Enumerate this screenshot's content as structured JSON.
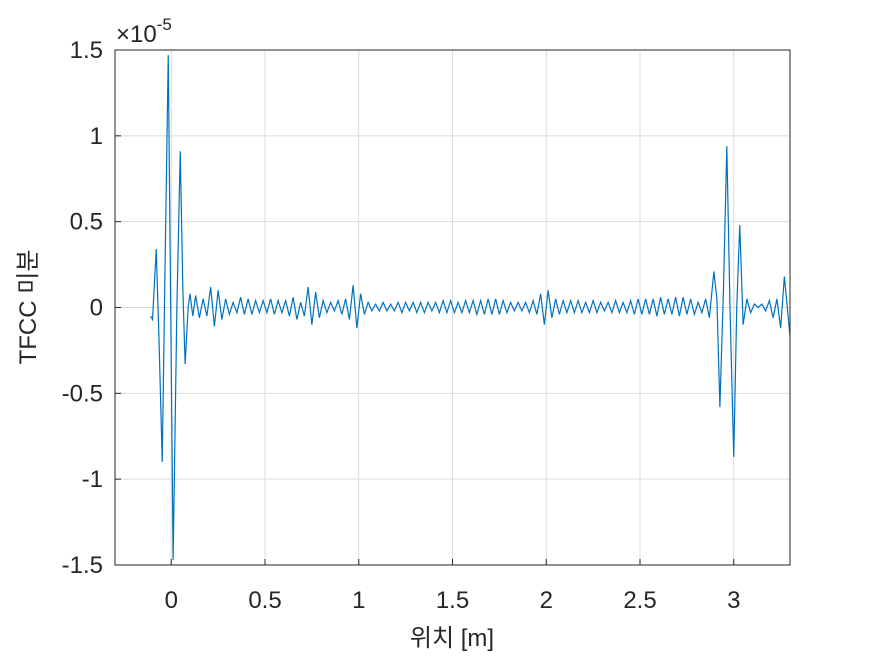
{
  "chart_data": {
    "type": "line",
    "xlabel": "위치 [m]",
    "ylabel": "TFCC 미분",
    "y_exponent_base": "×10",
    "y_exponent": "-5",
    "xlim": [
      -0.3,
      3.3
    ],
    "ylim": [
      -1.5,
      1.5
    ],
    "xticks": [
      0,
      0.5,
      1,
      1.5,
      2,
      2.5,
      3
    ],
    "yticks": [
      -1.5,
      -1,
      -0.5,
      0,
      0.5,
      1,
      1.5
    ],
    "grid": true,
    "series": [
      {
        "color": "#0072BD",
        "x": [
          -0.11,
          -0.1,
          -0.08,
          -0.065,
          -0.048,
          -0.035,
          -0.016,
          -0.003,
          0.01,
          0.03,
          0.048,
          0.062,
          0.074,
          0.09,
          0.1,
          0.115,
          0.13,
          0.15,
          0.17,
          0.19,
          0.21,
          0.23,
          0.25,
          0.27,
          0.29,
          0.31,
          0.33,
          0.35,
          0.37,
          0.39,
          0.41,
          0.43,
          0.45,
          0.47,
          0.49,
          0.51,
          0.53,
          0.55,
          0.57,
          0.59,
          0.61,
          0.63,
          0.65,
          0.67,
          0.69,
          0.71,
          0.73,
          0.75,
          0.77,
          0.79,
          0.81,
          0.83,
          0.85,
          0.87,
          0.89,
          0.91,
          0.93,
          0.95,
          0.97,
          0.99,
          1.01,
          1.03,
          1.05,
          1.07,
          1.09,
          1.11,
          1.13,
          1.15,
          1.17,
          1.19,
          1.21,
          1.23,
          1.25,
          1.27,
          1.29,
          1.31,
          1.33,
          1.35,
          1.37,
          1.39,
          1.41,
          1.43,
          1.45,
          1.47,
          1.49,
          1.51,
          1.53,
          1.55,
          1.57,
          1.59,
          1.61,
          1.63,
          1.65,
          1.67,
          1.69,
          1.71,
          1.73,
          1.75,
          1.77,
          1.79,
          1.81,
          1.83,
          1.85,
          1.87,
          1.89,
          1.91,
          1.93,
          1.95,
          1.97,
          1.99,
          2.01,
          2.03,
          2.05,
          2.07,
          2.09,
          2.11,
          2.13,
          2.15,
          2.17,
          2.19,
          2.21,
          2.23,
          2.25,
          2.27,
          2.29,
          2.31,
          2.33,
          2.35,
          2.37,
          2.39,
          2.41,
          2.43,
          2.45,
          2.47,
          2.49,
          2.51,
          2.53,
          2.55,
          2.57,
          2.59,
          2.61,
          2.63,
          2.65,
          2.67,
          2.69,
          2.71,
          2.73,
          2.75,
          2.77,
          2.79,
          2.81,
          2.83,
          2.85,
          2.87,
          2.894,
          2.91,
          2.926,
          2.945,
          2.963,
          2.98,
          3.0,
          3.016,
          3.032,
          3.05,
          3.07,
          3.09,
          3.11,
          3.13,
          3.15,
          3.17,
          3.19,
          3.21,
          3.23,
          3.25,
          3.27,
          3.29,
          3.3
        ],
        "values": [
          -0.05,
          -0.07,
          0.34,
          -0.2,
          -0.9,
          0.1,
          1.47,
          0.0,
          -1.47,
          0.0,
          0.91,
          0.1,
          -0.33,
          0.0,
          0.08,
          -0.05,
          0.07,
          -0.06,
          0.05,
          -0.05,
          0.12,
          -0.11,
          0.1,
          -0.07,
          0.05,
          -0.04,
          0.03,
          -0.03,
          0.06,
          -0.04,
          0.05,
          -0.04,
          0.04,
          -0.03,
          0.04,
          -0.03,
          0.05,
          -0.04,
          0.04,
          -0.03,
          0.04,
          -0.05,
          0.06,
          -0.07,
          0.03,
          -0.05,
          0.12,
          -0.1,
          0.09,
          -0.06,
          0.04,
          -0.03,
          0.03,
          -0.02,
          0.04,
          -0.04,
          0.05,
          -0.07,
          0.13,
          -0.12,
          0.08,
          -0.04,
          0.03,
          -0.02,
          0.02,
          -0.02,
          0.03,
          -0.02,
          0.02,
          -0.02,
          0.03,
          -0.03,
          0.03,
          -0.02,
          0.03,
          -0.03,
          0.03,
          -0.03,
          0.03,
          -0.02,
          0.03,
          -0.03,
          0.04,
          -0.03,
          0.04,
          -0.03,
          0.03,
          -0.03,
          0.04,
          -0.03,
          0.04,
          -0.04,
          0.04,
          -0.04,
          0.05,
          -0.04,
          0.05,
          -0.04,
          0.04,
          -0.03,
          0.03,
          -0.02,
          0.03,
          -0.02,
          0.03,
          -0.03,
          0.04,
          -0.04,
          0.08,
          -0.1,
          0.1,
          -0.06,
          0.05,
          -0.04,
          0.04,
          -0.03,
          0.04,
          -0.03,
          0.04,
          -0.03,
          0.03,
          -0.03,
          0.04,
          -0.03,
          0.03,
          -0.02,
          0.03,
          -0.03,
          0.04,
          -0.03,
          0.03,
          -0.03,
          0.04,
          -0.04,
          0.05,
          -0.04,
          0.05,
          -0.04,
          0.05,
          -0.05,
          0.06,
          -0.04,
          0.05,
          -0.04,
          0.06,
          -0.05,
          0.06,
          -0.04,
          0.05,
          -0.04,
          0.03,
          -0.03,
          0.05,
          -0.06,
          0.21,
          0.05,
          -0.58,
          0.1,
          0.94,
          0.0,
          -0.87,
          0.0,
          0.48,
          -0.1,
          0.05,
          -0.03,
          0.02,
          0.0,
          0.02,
          -0.02,
          0.04,
          -0.06,
          0.05,
          -0.12,
          0.18,
          -0.05,
          -0.17
        ]
      }
    ]
  }
}
